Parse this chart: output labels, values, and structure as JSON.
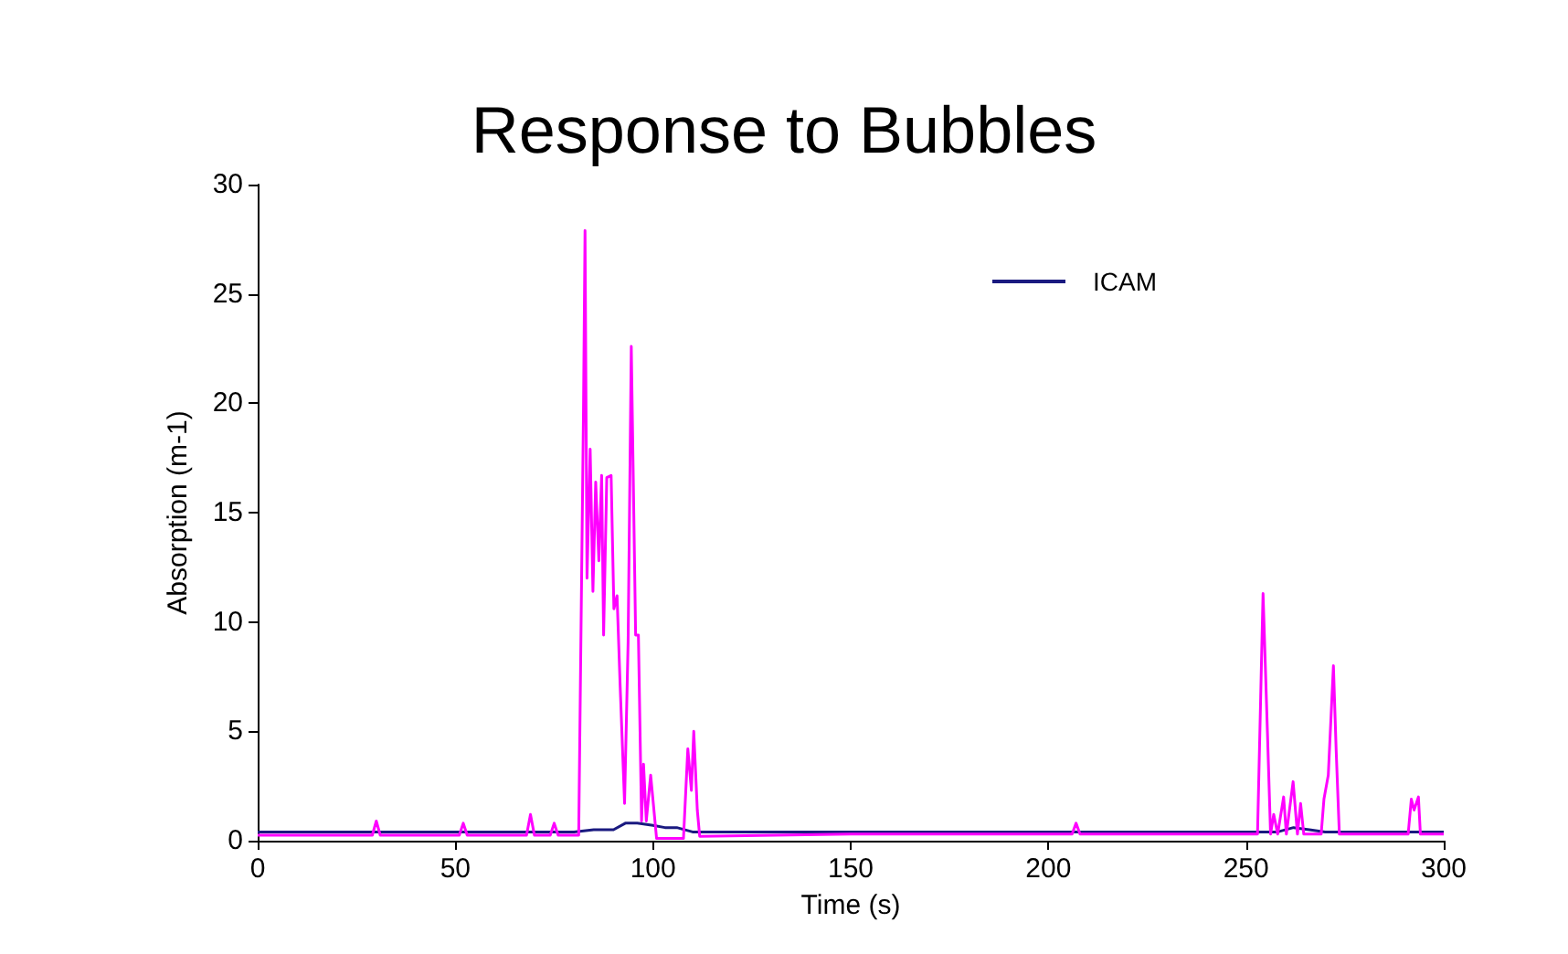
{
  "chart_data": {
    "type": "line",
    "title": "Response to Bubbles",
    "xlabel": "Time (s)",
    "ylabel": "Absorption (m-1)",
    "xlim": [
      0,
      300
    ],
    "xticks": [
      0,
      50,
      100,
      150,
      200,
      250,
      300
    ],
    "ylim": [
      0,
      30
    ],
    "yticks": [
      0,
      5,
      10,
      15,
      20,
      25,
      30
    ],
    "grid": false,
    "legend": "top right",
    "marker": "none",
    "line_style": "solid",
    "series": [
      {
        "name": "ICAM",
        "color": "#1a1a80",
        "x": [
          0,
          40,
          80,
          85,
          90,
          93,
          96,
          100,
          103,
          106,
          110,
          115,
          150,
          200,
          240,
          250,
          258,
          262,
          266,
          270,
          280,
          290,
          300
        ],
        "values": [
          0.4,
          0.4,
          0.4,
          0.5,
          0.5,
          0.8,
          0.8,
          0.7,
          0.6,
          0.6,
          0.4,
          0.4,
          0.4,
          0.4,
          0.4,
          0.4,
          0.4,
          0.6,
          0.5,
          0.4,
          0.4,
          0.4,
          0.4
        ]
      },
      {
        "color": "#ff00ff",
        "x": [
          0,
          29,
          30,
          31,
          51,
          52,
          53,
          68,
          69,
          70,
          74,
          75,
          76,
          81.2,
          82.4,
          82.8,
          83.3,
          84.1,
          84.8,
          85.5,
          86.3,
          87.0,
          87.5,
          88.3,
          89.4,
          90.1,
          90.9,
          91.7,
          92.8,
          93.7,
          94.5,
          95.6,
          96.3,
          97.1,
          97.6,
          98.3,
          99.4,
          100.9,
          107.7,
          108.8,
          109.7,
          110.3,
          111.2,
          111.8,
          150,
          206,
          207,
          208,
          252.9,
          254.3,
          255.4,
          256.2,
          257.0,
          258.0,
          259.5,
          260.2,
          261.9,
          263.0,
          263.8,
          264.6,
          269.0,
          269.7,
          270.8,
          272.1,
          272.8,
          273.6,
          291.0,
          291.8,
          292.5,
          293.6,
          294.1,
          300
        ],
        "values": [
          0.25,
          0.25,
          0.9,
          0.25,
          0.25,
          0.8,
          0.25,
          0.25,
          1.2,
          0.25,
          0.25,
          0.8,
          0.25,
          0.25,
          19.5,
          27.9,
          12.0,
          17.9,
          11.4,
          16.4,
          12.8,
          16.7,
          9.4,
          16.6,
          16.7,
          10.6,
          11.2,
          7.0,
          1.7,
          9.1,
          22.6,
          9.4,
          9.4,
          0.9,
          3.5,
          0.9,
          3.0,
          0.1,
          0.1,
          4.2,
          2.3,
          5.0,
          1.4,
          0.2,
          0.3,
          0.3,
          0.8,
          0.3,
          0.3,
          11.3,
          5.0,
          0.3,
          1.2,
          0.3,
          2.0,
          0.3,
          2.7,
          0.3,
          1.7,
          0.3,
          0.3,
          1.9,
          3.0,
          8.0,
          4.1,
          0.3,
          0.3,
          1.9,
          1.4,
          2.0,
          0.3,
          0.3
        ]
      }
    ]
  }
}
